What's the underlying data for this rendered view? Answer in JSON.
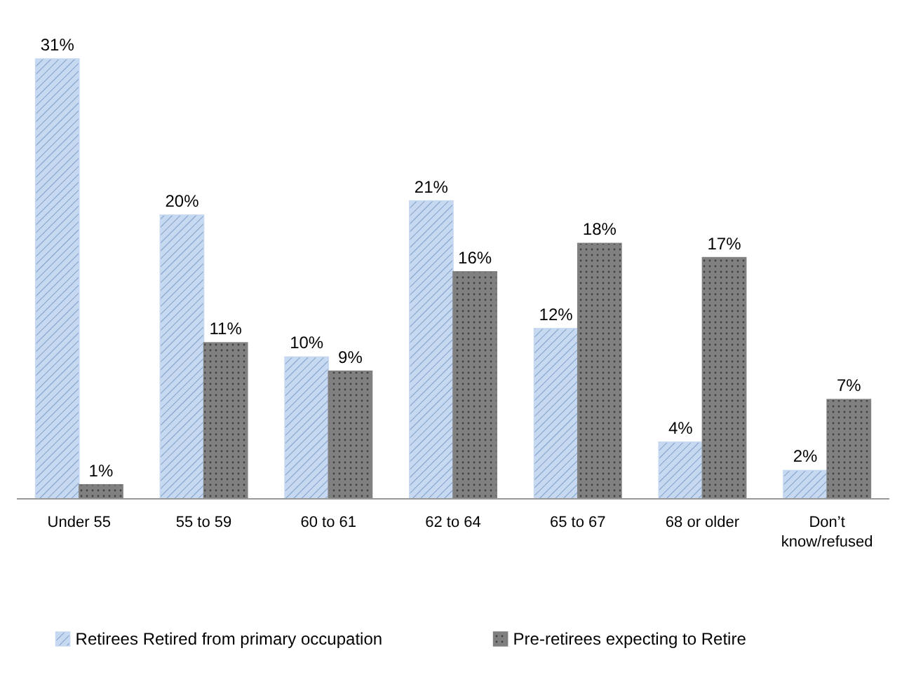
{
  "chart_data": {
    "type": "bar",
    "categories": [
      "Under 55",
      "55 to 59",
      "60 to 61",
      "62 to 64",
      "65 to 67",
      "68 or older",
      "Don’t know/refused"
    ],
    "series": [
      {
        "name": "Retirees Retired from primary occupation",
        "color": "#c6d9f1",
        "values": [
          31,
          20,
          10,
          21,
          12,
          4,
          2
        ],
        "value_labels": [
          "31%",
          "20%",
          "10%",
          "21%",
          "12%",
          "4%",
          "2%"
        ]
      },
      {
        "name": "Pre-retirees expecting to Retire",
        "color": "#808080",
        "values": [
          1,
          11,
          9,
          16,
          18,
          17,
          7
        ],
        "value_labels": [
          "1%",
          "11%",
          "9%",
          "16%",
          "18%",
          "17%",
          "7%"
        ]
      }
    ],
    "legend": "bottom"
  }
}
